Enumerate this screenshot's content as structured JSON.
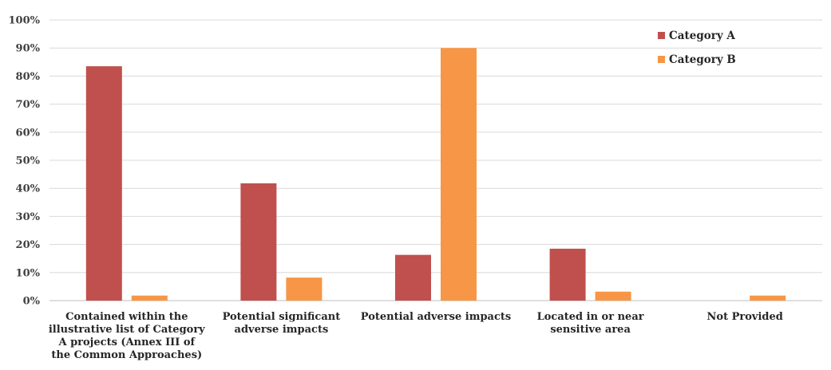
{
  "chart_data": {
    "type": "bar",
    "title": "",
    "xlabel": "",
    "ylabel": "",
    "ylim": [
      0,
      100
    ],
    "yticks": [
      "0%",
      "10%",
      "20%",
      "30%",
      "40%",
      "50%",
      "60%",
      "70%",
      "80%",
      "90%",
      "100%"
    ],
    "grid": true,
    "legend_position": "top-right",
    "categories": [
      [
        "Contained within the",
        "illustrative list of Category",
        "A projects (Annex III of",
        "the Common Approaches)"
      ],
      [
        "Potential significant",
        "adverse impacts"
      ],
      [
        "Potential adverse impacts"
      ],
      [
        "Located in or near",
        "sensitive area"
      ],
      [
        "Not Provided"
      ]
    ],
    "series": [
      {
        "name": "Category A",
        "color": "#c0504d",
        "values": [
          83.5,
          41.8,
          16.3,
          18.5,
          0
        ]
      },
      {
        "name": "Category B",
        "color": "#f79646",
        "values": [
          1.8,
          8.2,
          90.0,
          3.2,
          1.8
        ]
      }
    ]
  }
}
